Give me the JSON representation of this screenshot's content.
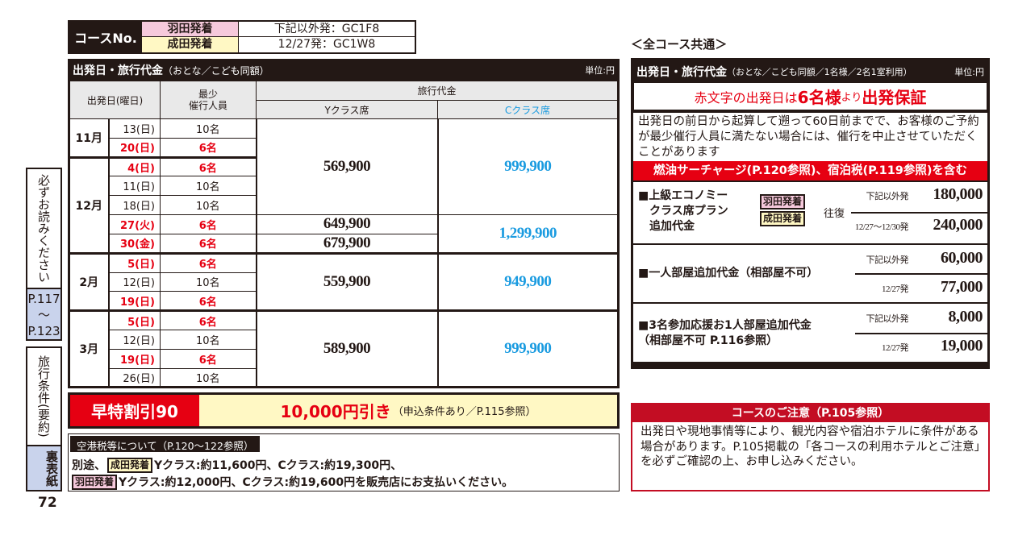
{
  "course": {
    "label": "コースNo.",
    "rows": [
      {
        "dep": "羽田発着",
        "code": "下記以外発：GC1F8"
      },
      {
        "dep": "成田発着",
        "code": "12/27発：GC1W8"
      }
    ]
  },
  "main": {
    "title": "出発日・旅行代金",
    "title_note": "（おとな／こども同額）",
    "unit": "単位:円",
    "headers": {
      "date": "出発日(曜日)",
      "min": "最少\n催行人員",
      "price": "旅行代金",
      "y": "Yクラス席",
      "c": "Cクラス席"
    },
    "months": [
      {
        "label": "11月",
        "rows": [
          {
            "date": "13(日)",
            "min": "10名",
            "red": false
          },
          {
            "date": "20(日)",
            "min": "6名",
            "red": true
          }
        ]
      },
      {
        "label": "12月",
        "rows": [
          {
            "date": "4(日)",
            "min": "6名",
            "red": true
          },
          {
            "date": "11(日)",
            "min": "10名",
            "red": false
          },
          {
            "date": "18(日)",
            "min": "10名",
            "red": false
          },
          {
            "date": "27(火)",
            "min": "6名",
            "red": true
          },
          {
            "date": "30(金)",
            "min": "6名",
            "red": true
          }
        ]
      },
      {
        "label": "2月",
        "rows": [
          {
            "date": "5(日)",
            "min": "6名",
            "red": true
          },
          {
            "date": "12(日)",
            "min": "10名",
            "red": false
          },
          {
            "date": "19(日)",
            "min": "6名",
            "red": true
          }
        ]
      },
      {
        "label": "3月",
        "rows": [
          {
            "date": "5(日)",
            "min": "6名",
            "red": true
          },
          {
            "date": "12(日)",
            "min": "10名",
            "red": false
          },
          {
            "date": "19(日)",
            "min": "6名",
            "red": true
          },
          {
            "date": "26(日)",
            "min": "10名",
            "red": false
          }
        ]
      }
    ],
    "y_prices": [
      {
        "value": "569,900",
        "rows": 5
      },
      {
        "value": "649,900",
        "rows": 1
      },
      {
        "value": "679,900",
        "rows": 1
      },
      {
        "value": "559,900",
        "rows": 3
      },
      {
        "value": "589,900",
        "rows": 4
      }
    ],
    "c_prices": [
      {
        "value": "999,900",
        "rows": 5
      },
      {
        "value": "1,299,900",
        "rows": 2
      },
      {
        "value": "949,900",
        "rows": 3
      },
      {
        "value": "999,900",
        "rows": 4
      }
    ]
  },
  "early": {
    "label": "早特割引90",
    "discount": "10,000円引き",
    "note": "（申込条件あり／P.115参照）"
  },
  "tax": {
    "header": "空港税等について（P.120〜122参照）",
    "line1_prefix": "別途、",
    "line1_tag": "成田発着",
    "line1": "Yクラス:約11,600円、Cクラス:約19,300円、",
    "line2_tag": "羽田発着",
    "line2": "Yクラス:約12,000円、Cクラス:約19,600円を販売店にお支払いください。"
  },
  "side": {
    "tab1_text": "必ずお読みください",
    "tab1_pages": "P.117\n〜\nP.123",
    "tab2_text": "旅行条件(要約)",
    "tab2_label": "裏表紙",
    "page_number": "72"
  },
  "right": {
    "common": "＜全コース共通＞",
    "title": "出発日・旅行代金",
    "title_note": "（おとな／こども同額／1名様／2名1室利用）",
    "unit": "単位:円",
    "guarantee_pre": "赤文字の出発日は",
    "guarantee_bold1": "6名様",
    "guarantee_mid": "より",
    "guarantee_bold2": "出発保証",
    "note": "出発日の前日から起算して遡って60日前までで、お客様のご予約が最少催行人員に満たない場合には、催行を中止させていただくことがあります",
    "fuel": "燃油サーチャージ(P.120参照)、宿泊税(P.119参照)を含む",
    "upgrade": {
      "title": "■上級エコノミー\n　クラス席プラン\n　追加代金",
      "tag1": "羽田発着",
      "tag2": "成田発着",
      "roundtrip": "往復",
      "p1_label": "下記以外発",
      "p1": "180,000",
      "p2_label": "12/27〜12/30発",
      "p2": "240,000"
    },
    "single": {
      "title": "■一人部屋追加代金（相部屋不可）",
      "p1_label": "下記以外発",
      "p1": "60,000",
      "p2_label": "12/27発",
      "p2": "77,000"
    },
    "support": {
      "title": "■3名参加応援お1人部屋追加代金\n（相部屋不可 P.116参照）",
      "p1_label": "下記以外発",
      "p1": "8,000",
      "p2_label": "12/27発",
      "p2": "19,000"
    }
  },
  "caution": {
    "title": "コースのご注意（P.105参照）",
    "text": "出発日や現地事情等により、観光内容や宿泊ホテルに条件がある場合があります。P.105掲載の「各コースの利用ホテルとご注意」を必ずご確認の上、お申し込みください。"
  },
  "colors": {
    "red": "#e60012",
    "blue": "#1a9be0",
    "dark": "#231815",
    "haneda": "#f6c9dc",
    "narita": "#fff8c4",
    "side_blue": "#c9d3ec"
  }
}
